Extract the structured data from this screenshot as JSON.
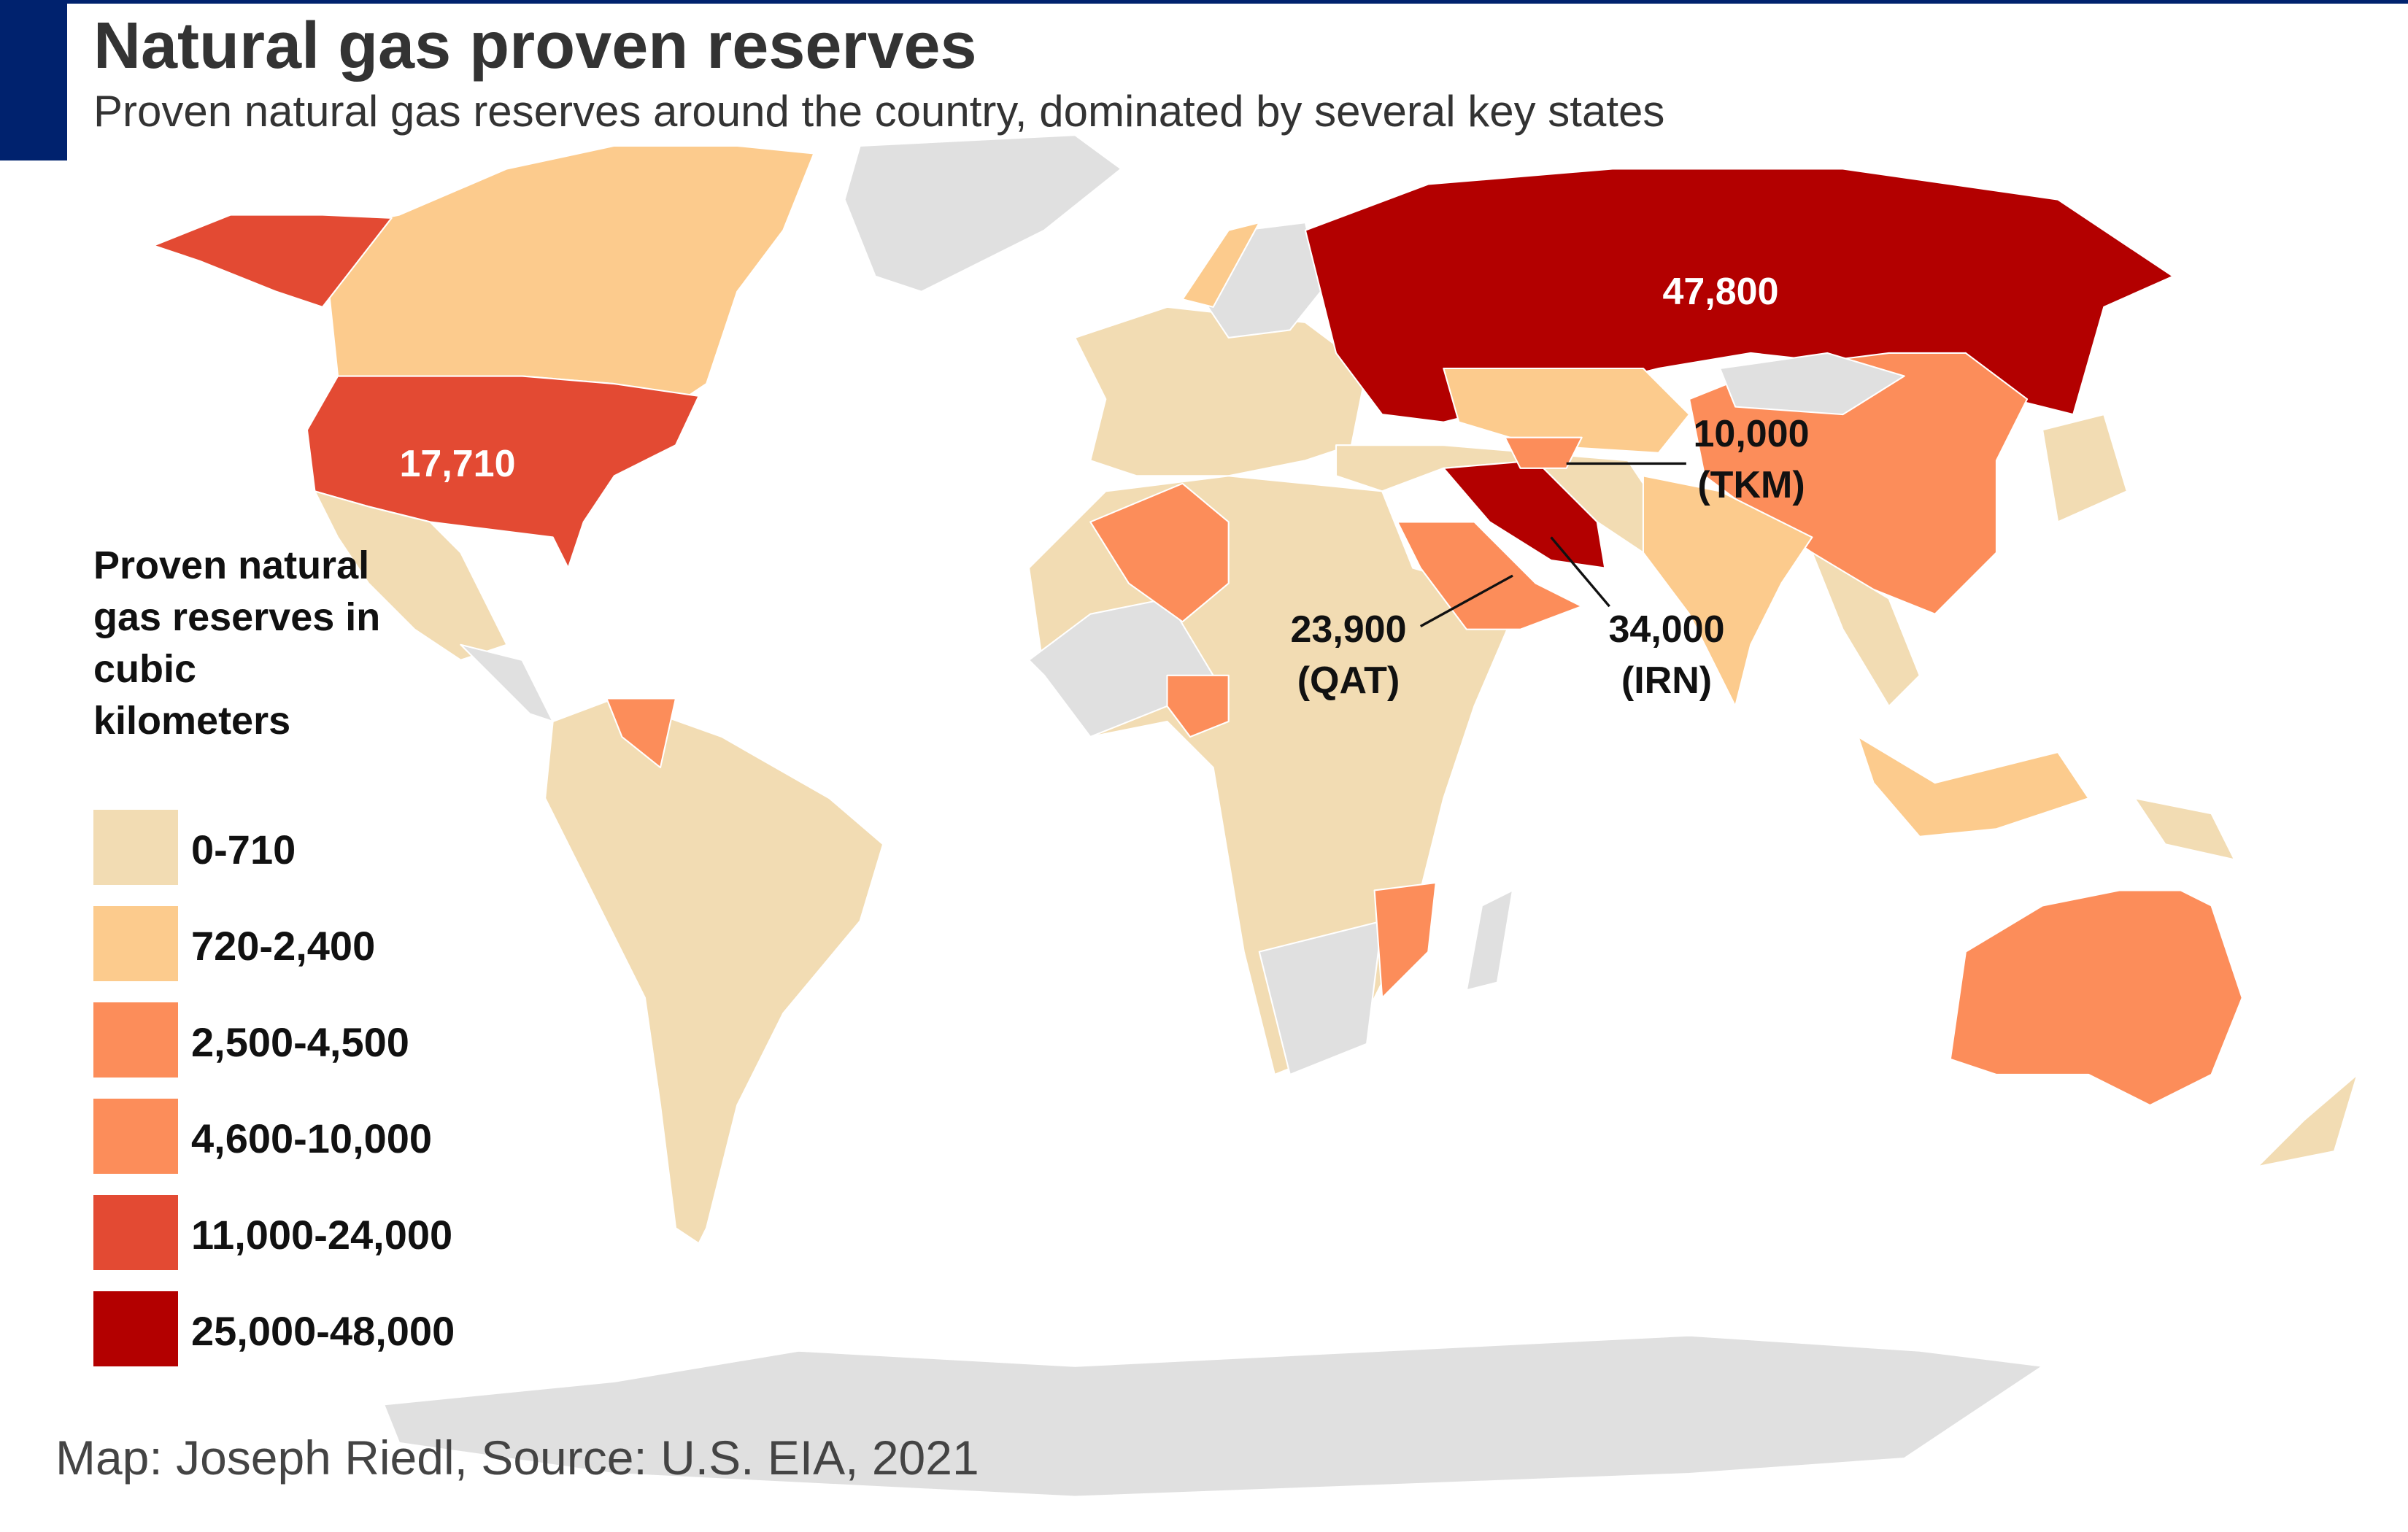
{
  "title": "Natural gas proven reserves",
  "subtitle": "Proven natural gas reserves around the country, dominated by several key states",
  "footer": "Map: Joseph Riedl, Source: U.S. EIA, 2021",
  "colors": {
    "header_bar": "#00226e",
    "no_data": "#e0e0e0"
  },
  "chart_data": {
    "type": "choropleth",
    "title": "Natural gas proven reserves",
    "legend": {
      "title": "Proven natural gas reserves in cubic kilometers",
      "placement": "left",
      "bins": [
        {
          "label": "0-710",
          "color": "#f2dcb3"
        },
        {
          "label": "720-2,400",
          "color": "#fccb8d"
        },
        {
          "label": "2,500-4,500",
          "color": "#fc8d5a"
        },
        {
          "label": "4,600-10,000",
          "color": "#fc8d5a"
        },
        {
          "label": "11,000-24,000",
          "color": "#e34a33"
        },
        {
          "label": "25,000-48,000",
          "color": "#b30000"
        }
      ]
    },
    "annotations": [
      {
        "value": "47,800"
      },
      {
        "value": "17,710"
      },
      {
        "value": "10,000",
        "code": "(TKM)"
      },
      {
        "value": "23,900",
        "code": "(QAT)"
      },
      {
        "value": "34,000",
        "code": "(IRN)"
      }
    ]
  }
}
